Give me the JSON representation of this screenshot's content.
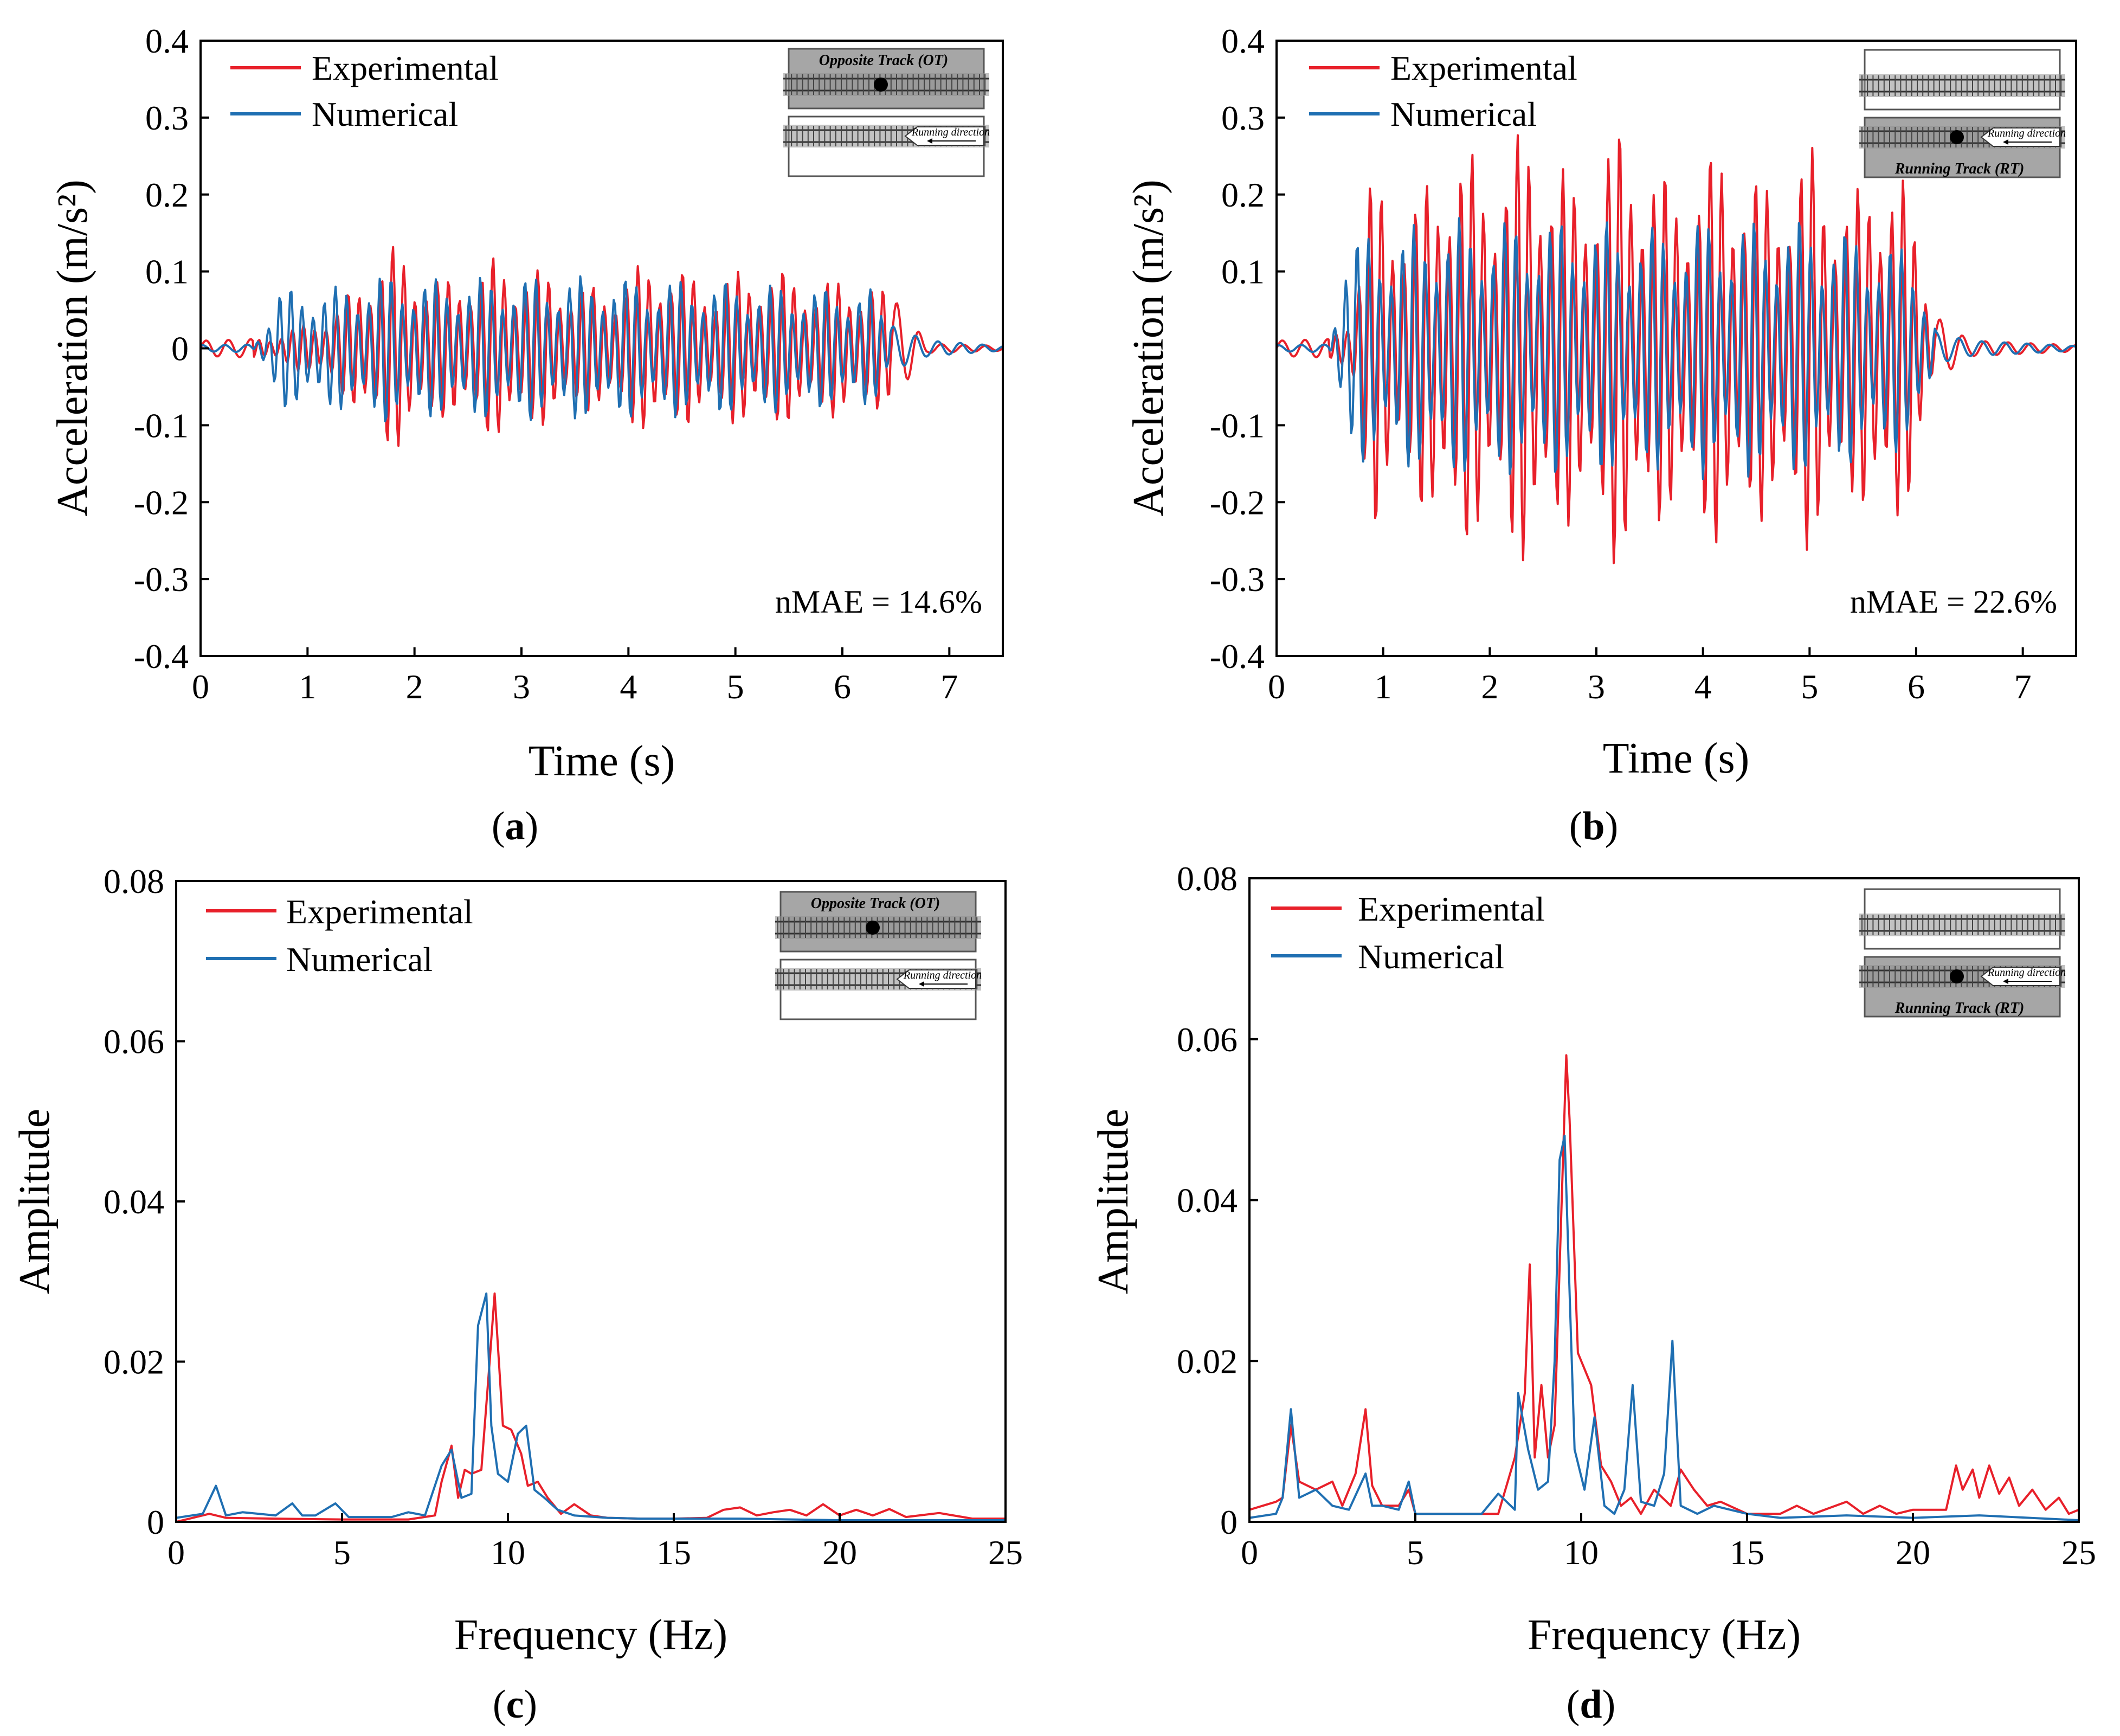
{
  "colors": {
    "experimental": "#e8202a",
    "numerical": "#1f6fb2",
    "axis": "#000000",
    "track_fill": "#a6a6a6"
  },
  "chart_data": [
    {
      "id": "a",
      "type": "line",
      "panel_label": "a",
      "xlabel": "Time (s)",
      "ylabel": "Acceleration (m/s²)",
      "xlim": [
        0,
        7.5
      ],
      "ylim": [
        -0.4,
        0.4
      ],
      "xticks": [
        0,
        1,
        2,
        3,
        4,
        5,
        6,
        7
      ],
      "xtick_labels": [
        "0",
        "1",
        "2",
        "3",
        "4",
        "5",
        "6",
        "7"
      ],
      "yticks": [
        0.4,
        0.3,
        0.2,
        0.1,
        0,
        -0.1,
        -0.2,
        -0.3,
        -0.4
      ],
      "ytick_labels": [
        "0.4",
        "0.3",
        "0.2",
        "0.1",
        "0",
        "-0.1",
        "-0.2",
        "-0.3",
        "-0.4"
      ],
      "legend": [
        "Experimental",
        "Numerical"
      ],
      "annotation": "nMAE = 14.6%",
      "inset": {
        "highlight": "opposite",
        "label": "Opposite Track (OT)",
        "direction_text": "Running direction"
      },
      "signal": {
        "t_start": 0.5,
        "t_end": 6.45,
        "step": 0.0125,
        "freq_hz": 9.6,
        "series": [
          {
            "name": "Experimental",
            "envelope_t": [
              0,
              0.5,
              0.75,
              1.25,
              1.75,
              2.25,
              2.75,
              3.25,
              3.75,
              4.25,
              4.75,
              5.25,
              5.75,
              6.25,
              6.45,
              6.8,
              7.5
            ],
            "envelope_a": [
              0.01,
              0.012,
              0.02,
              0.05,
              0.14,
              0.09,
              0.12,
              0.1,
              0.08,
              0.12,
              0.09,
              0.11,
              0.09,
              0.09,
              0.07,
              0.006,
              0.003
            ]
          },
          {
            "name": "Numerical",
            "envelope_t": [
              0,
              0.5,
              0.75,
              1.25,
              1.75,
              2.25,
              2.75,
              3.25,
              3.75,
              4.25,
              4.75,
              5.25,
              5.75,
              6.25,
              6.45,
              6.8,
              7.5
            ],
            "envelope_a": [
              0.004,
              0.005,
              0.08,
              0.08,
              0.1,
              0.09,
              0.095,
              0.095,
              0.095,
              0.09,
              0.09,
              0.085,
              0.08,
              0.08,
              0.03,
              0.01,
              0.003
            ]
          }
        ]
      }
    },
    {
      "id": "b",
      "type": "line",
      "panel_label": "b",
      "xlabel": "Time (s)",
      "ylabel": "Acceleration (m/s²)",
      "xlim": [
        0,
        7.5
      ],
      "ylim": [
        -0.4,
        0.4
      ],
      "xticks": [
        0,
        1,
        2,
        3,
        4,
        5,
        6,
        7
      ],
      "xtick_labels": [
        "0",
        "1",
        "2",
        "3",
        "4",
        "5",
        "6",
        "7"
      ],
      "yticks": [
        0.4,
        0.3,
        0.2,
        0.1,
        -0.1,
        -0.2,
        -0.3,
        -0.4
      ],
      "ytick_labels": [
        "0.4",
        "0.3",
        "0.2",
        "0.1",
        "-0.1",
        "-0.2",
        "-0.3",
        "-0.4"
      ],
      "legend": [
        "Experimental",
        "Numerical"
      ],
      "annotation": "nMAE = 22.6%",
      "inset": {
        "highlight": "running",
        "label": "Running Track (RT)",
        "direction_text": "Running direction"
      },
      "signal": {
        "t_start": 0.5,
        "t_end": 6.2,
        "step": 0.0125,
        "freq_hz": 9.4,
        "series": [
          {
            "name": "Experimental",
            "envelope_t": [
              0,
              0.5,
              0.7,
              0.9,
              1.25,
              1.6,
              2.0,
              2.4,
              2.8,
              3.25,
              3.7,
              4.2,
              4.6,
              5.0,
              5.4,
              5.8,
              6.2,
              6.5,
              7.5
            ],
            "envelope_a": [
              0.01,
              0.012,
              0.05,
              0.24,
              0.18,
              0.28,
              0.24,
              0.3,
              0.22,
              0.3,
              0.22,
              0.27,
              0.22,
              0.27,
              0.2,
              0.27,
              0.04,
              0.01,
              0.004
            ]
          },
          {
            "name": "Numerical",
            "envelope_t": [
              0,
              0.5,
              0.65,
              1.0,
              1.5,
              2.0,
              2.5,
              3.0,
              3.5,
              4.0,
              4.5,
              5.0,
              5.5,
              6.0,
              6.2,
              6.5,
              7.5
            ],
            "envelope_a": [
              0.004,
              0.005,
              0.15,
              0.15,
              0.17,
              0.17,
              0.17,
              0.17,
              0.16,
              0.17,
              0.17,
              0.17,
              0.15,
              0.13,
              0.02,
              0.01,
              0.003
            ]
          }
        ]
      }
    },
    {
      "id": "c",
      "type": "line",
      "panel_label": "c",
      "xlabel": "Frequency (Hz)",
      "ylabel": "Amplitude",
      "xlim": [
        0,
        25
      ],
      "ylim": [
        0,
        0.08
      ],
      "xticks": [
        0,
        5,
        10,
        15,
        20,
        25
      ],
      "xtick_labels": [
        "0",
        "5",
        "10",
        "15",
        "20",
        "25"
      ],
      "yticks": [
        0,
        0.02,
        0.04,
        0.06,
        0.08
      ],
      "ytick_labels": [
        "0",
        "0.02",
        "0.04",
        "0.06",
        "0.08"
      ],
      "legend": [
        "Experimental",
        "Numerical"
      ],
      "inset": {
        "highlight": "opposite",
        "label": "Opposite Track (OT)",
        "direction_text": "Running direction"
      },
      "series": [
        {
          "name": "Experimental",
          "x": [
            0,
            1.0,
            1.5,
            3.0,
            5.0,
            7.0,
            7.8,
            8.0,
            8.3,
            8.5,
            8.7,
            8.9,
            9.2,
            9.45,
            9.6,
            9.85,
            10.1,
            10.4,
            10.6,
            10.9,
            11.2,
            11.6,
            12.0,
            12.5,
            13.0,
            14.0,
            15.0,
            16.0,
            16.5,
            17.0,
            17.5,
            18.0,
            18.5,
            19.0,
            19.5,
            20.0,
            20.5,
            21.0,
            21.5,
            22.0,
            23.0,
            24.0,
            25.0
          ],
          "y": [
            0.0,
            0.001,
            0.0005,
            0.0004,
            0.0003,
            0.0003,
            0.0008,
            0.005,
            0.0095,
            0.003,
            0.0065,
            0.006,
            0.0065,
            0.02,
            0.0285,
            0.012,
            0.0115,
            0.0085,
            0.0045,
            0.005,
            0.003,
            0.001,
            0.0022,
            0.0008,
            0.0005,
            0.0004,
            0.0004,
            0.0005,
            0.0015,
            0.0018,
            0.0008,
            0.0012,
            0.0015,
            0.0008,
            0.0022,
            0.0008,
            0.0015,
            0.0008,
            0.0016,
            0.0006,
            0.0011,
            0.0004,
            0.0004
          ]
        },
        {
          "name": "Numerical",
          "x": [
            0,
            0.8,
            1.2,
            1.5,
            2.0,
            3.0,
            3.5,
            3.8,
            4.2,
            4.8,
            5.2,
            6.5,
            7.0,
            7.5,
            8.0,
            8.3,
            8.6,
            8.9,
            9.1,
            9.35,
            9.5,
            9.7,
            10.0,
            10.3,
            10.55,
            10.8,
            11.1,
            11.5,
            12.0,
            13.0,
            14.0,
            15.0,
            17.0,
            20.0,
            25.0
          ],
          "y": [
            0.0005,
            0.001,
            0.0045,
            0.0008,
            0.0012,
            0.0008,
            0.0023,
            0.0008,
            0.0008,
            0.0023,
            0.0006,
            0.0006,
            0.0012,
            0.0008,
            0.007,
            0.009,
            0.003,
            0.0035,
            0.0245,
            0.0285,
            0.012,
            0.006,
            0.005,
            0.011,
            0.012,
            0.004,
            0.003,
            0.0015,
            0.0008,
            0.0005,
            0.0004,
            0.0004,
            0.0004,
            0.0002,
            0.0002
          ]
        }
      ]
    },
    {
      "id": "d",
      "type": "line",
      "panel_label": "d",
      "xlabel": "Frequency (Hz)",
      "ylabel": "Amplitude",
      "xlim": [
        0,
        25
      ],
      "ylim": [
        0,
        0.08
      ],
      "xticks": [
        0,
        5,
        10,
        15,
        20,
        25
      ],
      "xtick_labels": [
        "0",
        "5",
        "10",
        "15",
        "20",
        "25"
      ],
      "yticks": [
        0,
        0.02,
        0.04,
        0.06,
        0.08
      ],
      "ytick_labels": [
        "0",
        "0.02",
        "0.04",
        "0.06",
        "0.08"
      ],
      "legend": [
        "Experimental",
        "Numerical"
      ],
      "inset": {
        "highlight": "running",
        "label": "Running Track (RT)",
        "direction_text": "Running direction"
      },
      "series": [
        {
          "name": "Experimental",
          "x": [
            0,
            0.8,
            1.0,
            1.25,
            1.5,
            2.0,
            2.5,
            2.8,
            3.2,
            3.5,
            3.7,
            4.0,
            4.5,
            4.8,
            5.0,
            6.0,
            7.0,
            7.5,
            8.0,
            8.3,
            8.45,
            8.6,
            8.8,
            9.0,
            9.2,
            9.55,
            9.65,
            9.9,
            10.3,
            10.6,
            10.9,
            11.2,
            11.5,
            11.8,
            12.2,
            12.7,
            13.0,
            13.4,
            13.8,
            14.2,
            15.0,
            16.0,
            16.5,
            17.0,
            18.0,
            18.5,
            19.0,
            19.5,
            20.0,
            20.5,
            21.0,
            21.3,
            21.5,
            21.8,
            22.0,
            22.3,
            22.6,
            22.9,
            23.2,
            23.6,
            24.0,
            24.4,
            24.7,
            25.0
          ],
          "y": [
            0.0015,
            0.0025,
            0.003,
            0.012,
            0.005,
            0.004,
            0.005,
            0.002,
            0.006,
            0.014,
            0.0045,
            0.002,
            0.002,
            0.004,
            0.001,
            0.001,
            0.001,
            0.001,
            0.008,
            0.016,
            0.032,
            0.008,
            0.017,
            0.008,
            0.012,
            0.058,
            0.05,
            0.021,
            0.017,
            0.007,
            0.005,
            0.002,
            0.003,
            0.001,
            0.004,
            0.002,
            0.0065,
            0.004,
            0.002,
            0.0025,
            0.001,
            0.001,
            0.002,
            0.001,
            0.0025,
            0.001,
            0.002,
            0.001,
            0.0015,
            0.0015,
            0.0015,
            0.007,
            0.004,
            0.0065,
            0.003,
            0.007,
            0.0035,
            0.0055,
            0.002,
            0.004,
            0.0015,
            0.003,
            0.001,
            0.0015
          ]
        },
        {
          "name": "Numerical",
          "x": [
            0,
            0.8,
            1.0,
            1.25,
            1.5,
            2.0,
            2.5,
            3.0,
            3.5,
            3.7,
            4.0,
            4.5,
            4.8,
            5.0,
            5.5,
            6.0,
            7.0,
            7.5,
            8.0,
            8.1,
            8.4,
            8.7,
            9.0,
            9.2,
            9.35,
            9.5,
            9.8,
            10.1,
            10.4,
            10.7,
            11.0,
            11.3,
            11.55,
            11.8,
            12.2,
            12.5,
            12.75,
            13.0,
            13.5,
            14.0,
            15.0,
            16.0,
            18.0,
            20.0,
            22.0,
            25.0
          ],
          "y": [
            0.0005,
            0.001,
            0.003,
            0.014,
            0.003,
            0.004,
            0.002,
            0.0015,
            0.006,
            0.002,
            0.002,
            0.0015,
            0.005,
            0.001,
            0.001,
            0.001,
            0.001,
            0.0035,
            0.0015,
            0.016,
            0.009,
            0.004,
            0.005,
            0.02,
            0.045,
            0.048,
            0.009,
            0.004,
            0.013,
            0.002,
            0.001,
            0.004,
            0.017,
            0.0025,
            0.002,
            0.006,
            0.0225,
            0.002,
            0.001,
            0.002,
            0.001,
            0.0005,
            0.0008,
            0.0005,
            0.0008,
            0.0002
          ]
        }
      ]
    }
  ]
}
